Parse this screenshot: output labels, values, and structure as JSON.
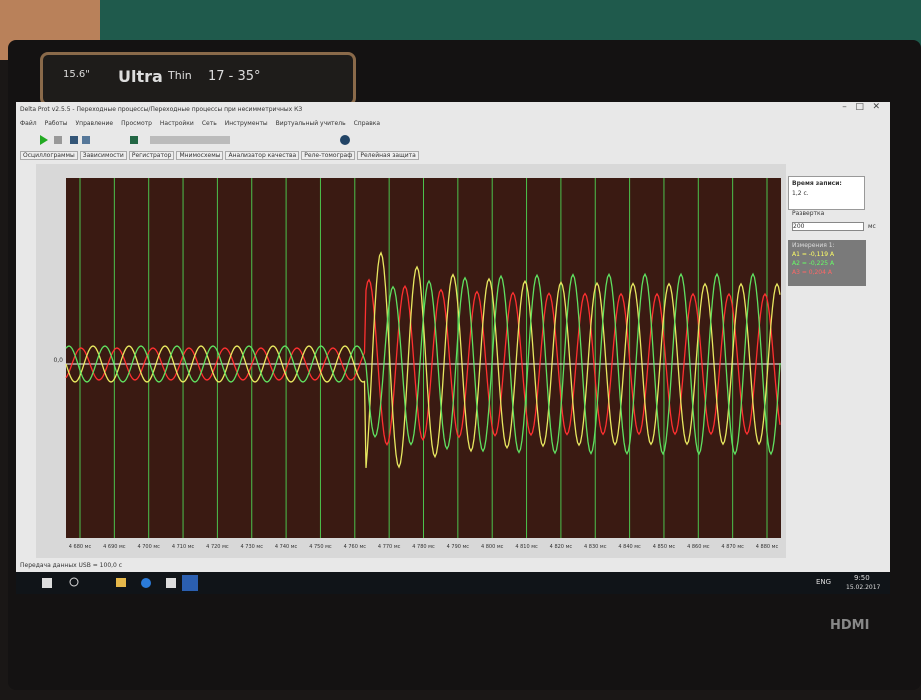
{
  "bezel": {
    "size": "15.6\"",
    "brand": "Ultra",
    "brand2": "Thin",
    "angle": "17 - 35°",
    "port": "HDMI"
  },
  "window": {
    "title": "Delta Prot v2.5.5 - Переходные процессы/Переходные процессы при несимметричных КЗ",
    "menu": [
      "Файл",
      "Работы",
      "Управление",
      "Просмотр",
      "Настройки",
      "Сеть",
      "Инструменты",
      "Виртуальный учитель",
      "Справка"
    ],
    "tabs": [
      "Осциллограммы",
      "Зависимости",
      "Регистратор",
      "Мнимосхемы",
      "Анализатор качества",
      "Реле-томограф",
      "Релейная защита"
    ]
  },
  "plot": {
    "y_label": "0,0",
    "x_labels": [
      "4 680 мс",
      "4 690 мс",
      "4 700 мс",
      "4 710 мс",
      "4 720 мс",
      "4 730 мс",
      "4 740 мс",
      "4 750 мс",
      "4 760 мс",
      "4 770 мс",
      "4 780 мс",
      "4 790 мс",
      "4 800 мс",
      "4 810 мс",
      "4 820 мс",
      "4 830 мс",
      "4 840 мс",
      "4 850 мс",
      "4 860 мс",
      "4 870 мс",
      "4 880 мс"
    ]
  },
  "side": {
    "record_label": "Время записи:",
    "record_value": "1,2 с.",
    "sweep_label": "Развертка",
    "sweep_value": "200",
    "sweep_unit": "мс",
    "measure_title": "Измерения 1:",
    "measurements": [
      "A1 = -0,119 А",
      "A2 = -0,225 А",
      "A3 = 0,204 А"
    ]
  },
  "status": "Передача данных USB = 100,0 с",
  "taskbar": {
    "lang": "ENG",
    "time": "9:50",
    "date": "15.02.2017"
  }
}
